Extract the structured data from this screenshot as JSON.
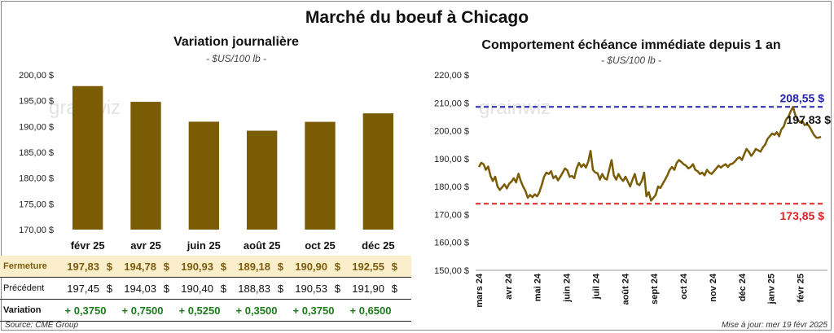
{
  "title": "Marché du boeuf à Chicago",
  "left_chart": {
    "title": "Variation journalière",
    "unit": "- $US/100 lb -"
  },
  "right_chart": {
    "title": "Comportement échéance immédiate depuis 1 an",
    "unit": "- $US/100 lb -"
  },
  "watermark": "grainwiz",
  "table": {
    "rows": [
      {
        "label": "Fermeture",
        "values": [
          "197,83",
          "194,78",
          "190,93",
          "189,18",
          "190,90",
          "192,55"
        ]
      },
      {
        "label": "Précédent",
        "values": [
          "197,45",
          "194,03",
          "190,40",
          "188,83",
          "190,53",
          "191,90"
        ]
      },
      {
        "label": "Variation",
        "values": [
          "+ 0,3750",
          "+ 0,7500",
          "+ 0,5250",
          "+ 0,3500",
          "+ 0,3750",
          "+ 0,6500"
        ]
      }
    ],
    "currency": "$"
  },
  "footer": {
    "source": "Source: CME Group",
    "updated": "Mise à jour: mer 19 févr 2025"
  },
  "colors": {
    "bar": "#7a5c05",
    "line": "#7a5c05",
    "high": "#2222aa",
    "low": "#dd2222",
    "closeRow": "#fbeecb",
    "positive": "#1c7a1c"
  },
  "chart_data": [
    {
      "type": "bar",
      "title": "Variation journalière",
      "categories": [
        "févr 25",
        "avr 25",
        "juin 25",
        "août 25",
        "oct 25",
        "déc 25"
      ],
      "values": [
        197.83,
        194.78,
        190.93,
        189.18,
        190.9,
        192.55
      ],
      "ylim": [
        170,
        200
      ],
      "yticks": [
        "200,00 $",
        "195,00 $",
        "190,00 $",
        "185,00 $",
        "180,00 $",
        "175,00 $",
        "170,00 $"
      ],
      "grid": false
    },
    {
      "type": "line",
      "title": "Comportement échéance immédiate depuis 1 an",
      "ylim": [
        150,
        220
      ],
      "yticks": [
        "220,00 $",
        "210,00 $",
        "200,00 $",
        "190,00 $",
        "180,00 $",
        "170,00 $",
        "160,00 $",
        "150,00 $"
      ],
      "x_labels": [
        "mars 24",
        "avr 24",
        "mai 24",
        "juin 24",
        "juil 24",
        "août 24",
        "sept 24",
        "oct 24",
        "nov 24",
        "déc 24",
        "janv 25",
        "févr 25"
      ],
      "values": [
        187.0,
        188.5,
        188.0,
        186.0,
        187.2,
        183.8,
        182.0,
        183.5,
        180.0,
        178.8,
        179.8,
        180.8,
        179.3,
        181.0,
        181.8,
        183.0,
        181.5,
        184.6,
        182.0,
        180.0,
        178.5,
        176.0,
        177.0,
        176.2,
        177.2,
        176.5,
        178.0,
        180.5,
        183.5,
        185.0,
        184.5,
        185.5,
        183.0,
        183.8,
        182.2,
        183.5,
        185.0,
        186.5,
        185.8,
        183.5,
        183.8,
        183.0,
        186.5,
        188.5,
        187.0,
        188.0,
        186.8,
        189.0,
        192.8,
        186.0,
        185.0,
        184.8,
        182.5,
        184.5,
        183.0,
        182.5,
        186.0,
        189.5,
        184.0,
        182.5,
        184.5,
        183.0,
        182.0,
        183.5,
        181.8,
        180.0,
        182.5,
        184.5,
        181.0,
        180.5,
        182.0,
        185.0,
        176.5,
        178.0,
        175.0,
        176.0,
        177.0,
        180.0,
        179.5,
        181.0,
        182.5,
        184.0,
        186.0,
        187.0,
        186.0,
        188.5,
        189.5,
        188.8,
        188.0,
        187.5,
        186.5,
        187.0,
        188.0,
        186.0,
        185.5,
        184.5,
        185.0,
        184.0,
        186.0,
        185.0,
        184.5,
        185.5,
        186.5,
        187.5,
        186.8,
        187.5,
        188.0,
        187.0,
        188.0,
        188.2,
        189.0,
        190.0,
        190.5,
        189.5,
        191.5,
        193.5,
        192.5,
        191.0,
        192.0,
        193.5,
        193.0,
        192.5,
        194.0,
        195.0,
        197.0,
        198.0,
        199.0,
        198.5,
        199.5,
        198.0,
        200.5,
        201.5,
        204.0,
        205.0,
        207.0,
        208.55,
        205.5,
        204.0,
        203.0,
        203.5,
        202.0,
        202.5,
        201.5,
        200.0,
        198.5,
        197.5,
        197.5,
        197.83
      ],
      "high": 208.55,
      "high_label": "208,55 $",
      "low": 173.85,
      "low_label": "173,85 $",
      "last_label": "197,83 $",
      "grid": false
    }
  ]
}
